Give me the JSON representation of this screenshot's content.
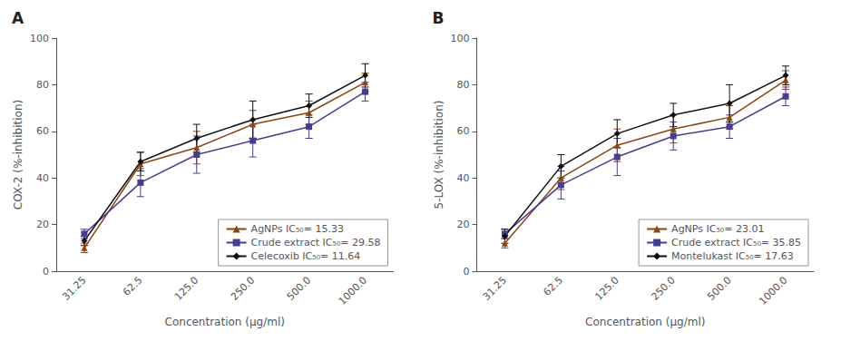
{
  "chart_data": [
    {
      "type": "line",
      "title": "A",
      "x_label": "Concentration (μg/ml)",
      "y_label": "COX-2 (%-inhibition)",
      "categories": [
        "31.25",
        "62.5",
        "125.0",
        "250.0",
        "500.0",
        "1000.0"
      ],
      "ylim": [
        0,
        100
      ],
      "yticks": [
        0,
        20,
        40,
        60,
        80,
        100
      ],
      "grid": false,
      "legend": "lower right",
      "series": [
        {
          "name": "AgNPs IC₅₀= 15.33",
          "color": "#8B4513",
          "marker": "triangle",
          "values": [
            10,
            46,
            53,
            63,
            68,
            81
          ],
          "errors": [
            2,
            5,
            7,
            6,
            5,
            4
          ]
        },
        {
          "name": "Crude extract IC₅₀= 29.58",
          "color": "#483D8B",
          "marker": "square",
          "values": [
            16,
            38,
            50,
            56,
            62,
            77
          ],
          "errors": [
            2,
            6,
            8,
            7,
            5,
            4
          ]
        },
        {
          "name": "Celecoxib IC₅₀= 11.64",
          "color": "#111111",
          "marker": "diamond",
          "values": [
            13,
            47,
            57,
            65,
            71,
            84
          ],
          "errors": [
            2,
            4,
            6,
            8,
            5,
            5
          ]
        }
      ]
    },
    {
      "type": "line",
      "title": "B",
      "x_label": "Concentration (μg/ml)",
      "y_label": "5-LOX (%-inhibition)",
      "categories": [
        "31.25",
        "62.5",
        "125.0",
        "250.0",
        "500.0",
        "1000.0"
      ],
      "ylim": [
        0,
        100
      ],
      "yticks": [
        0,
        20,
        40,
        60,
        80,
        100
      ],
      "grid": false,
      "legend": "lower right",
      "series": [
        {
          "name": "AgNPs IC₅₀= 23.01",
          "color": "#8B4513",
          "marker": "triangle",
          "values": [
            12,
            40,
            54,
            61,
            66,
            82
          ],
          "errors": [
            2,
            5,
            7,
            6,
            5,
            4
          ]
        },
        {
          "name": "Crude extract IC₅₀= 35.85",
          "color": "#483D8B",
          "marker": "square",
          "values": [
            16,
            37,
            49,
            58,
            62,
            75
          ],
          "errors": [
            2,
            6,
            8,
            6,
            5,
            4
          ]
        },
        {
          "name": "Montelukast IC₅₀= 17.63",
          "color": "#111111",
          "marker": "diamond",
          "values": [
            15,
            45,
            59,
            67,
            72,
            84
          ],
          "errors": [
            3,
            5,
            6,
            5,
            8,
            4
          ]
        }
      ]
    }
  ]
}
